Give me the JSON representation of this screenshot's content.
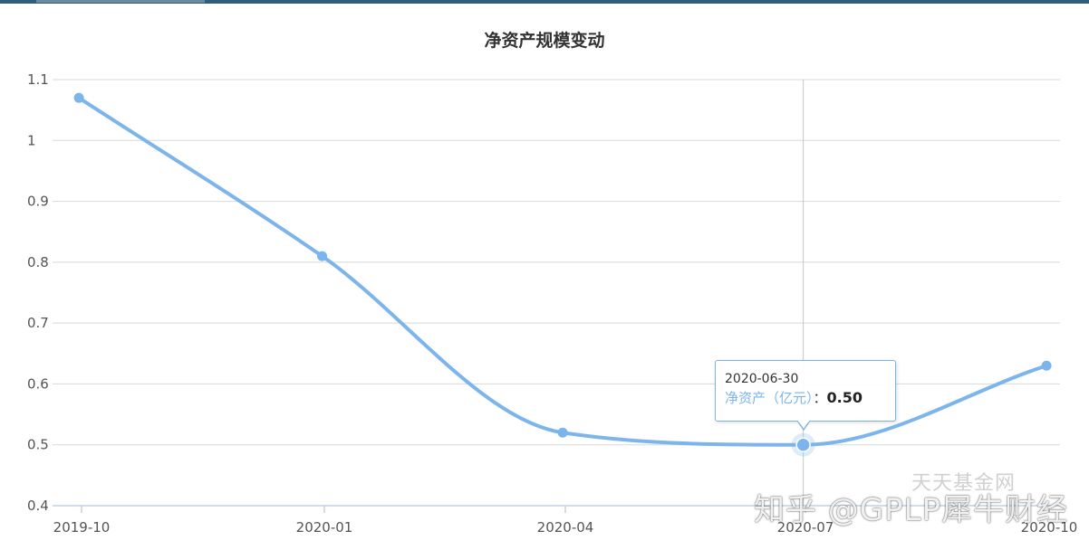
{
  "chart_data": {
    "type": "line",
    "title": "净资产规模变动",
    "xlabel": "",
    "ylabel": "",
    "x_ticks": [
      "2019-10",
      "2020-01",
      "2020-04",
      "2020-07",
      "2020-10"
    ],
    "y_ticks": [
      "0.4",
      "0.5",
      "0.6",
      "0.7",
      "0.8",
      "0.9",
      "1",
      "1.1"
    ],
    "ylim": [
      0.4,
      1.1
    ],
    "grid": "horizontal",
    "series": [
      {
        "name": "净资产（亿元）",
        "color": "#7cb5ec",
        "points": [
          {
            "x": "2019-09-30",
            "y": 1.07
          },
          {
            "x": "2019-12-31",
            "y": 0.81
          },
          {
            "x": "2020-03-31",
            "y": 0.52
          },
          {
            "x": "2020-06-30",
            "y": 0.5
          },
          {
            "x": "2020-09-30",
            "y": 0.63
          }
        ]
      }
    ],
    "tooltip": {
      "date": "2020-06-30",
      "label": "净资产（亿元）",
      "separator": "：",
      "value": "0.50",
      "point_index": 3
    }
  },
  "watermarks": {
    "source": "天天基金网",
    "author": "知乎 @GPLP犀牛财经"
  }
}
